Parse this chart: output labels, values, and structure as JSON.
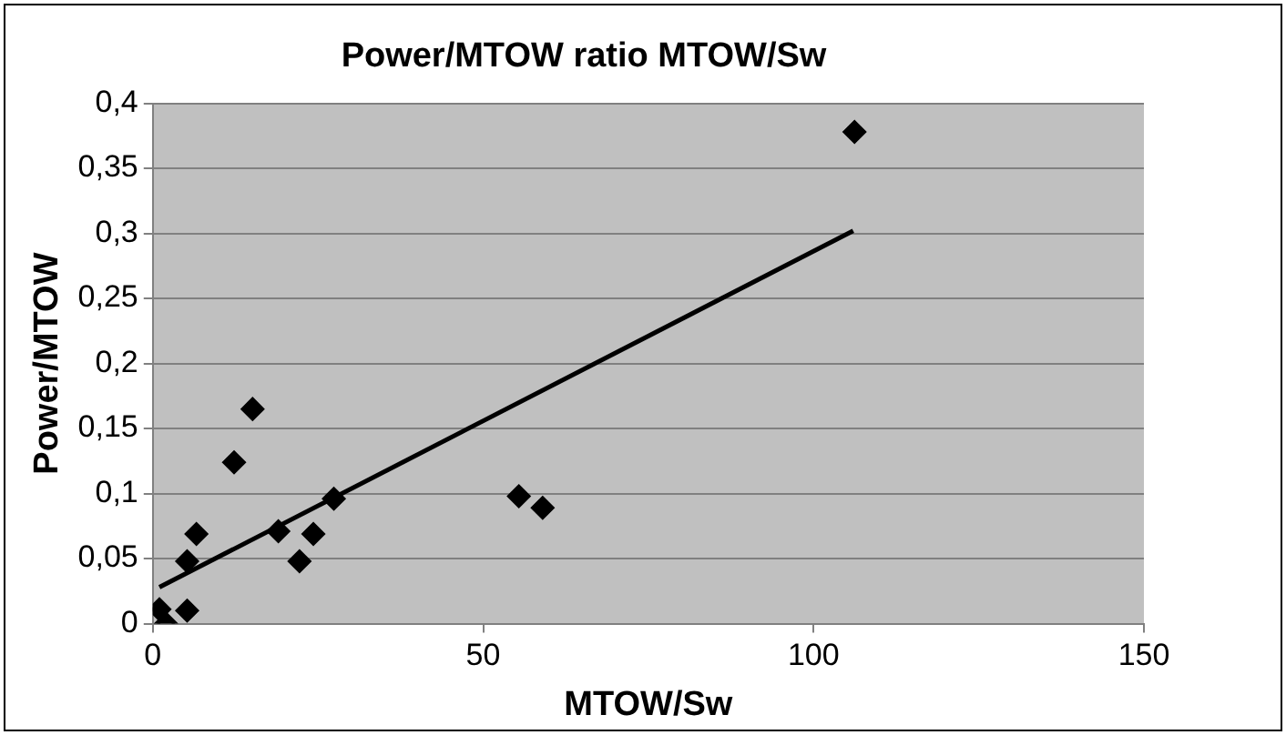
{
  "chart_data": {
    "type": "scatter",
    "title": "Power/MTOW ratio MTOW/Sw",
    "xlabel": "MTOW/Sw",
    "ylabel": "Power/MTOW",
    "series": [
      {
        "color": "#000000",
        "marker": "diamond",
        "x": [
          1.0,
          2.0,
          5.2,
          5.2,
          6.6,
          12.3,
          15.1,
          19.0,
          22.2,
          24.3,
          27.4,
          55.4,
          59.0,
          106.2
        ],
        "values": [
          0.011,
          0.0,
          0.01,
          0.048,
          0.069,
          0.124,
          0.165,
          0.071,
          0.048,
          0.069,
          0.096,
          0.098,
          0.089,
          0.378
        ]
      },
      {
        "type": "line",
        "color": "#000000",
        "marker": "none",
        "x": [
          1,
          106
        ],
        "values": [
          0.028,
          0.302
        ]
      }
    ],
    "xlim": [
      0,
      150
    ],
    "xticks": [
      0,
      50,
      100,
      150
    ],
    "ylim": [
      0,
      0.4
    ],
    "yticks": [
      {
        "value": 0,
        "label": "0"
      },
      {
        "value": 0.05,
        "label": "0,05"
      },
      {
        "value": 0.1,
        "label": "0,1"
      },
      {
        "value": 0.15,
        "label": "0,15"
      },
      {
        "value": 0.2,
        "label": "0,2"
      },
      {
        "value": 0.25,
        "label": "0,25"
      },
      {
        "value": 0.3,
        "label": "0,3"
      },
      {
        "value": 0.35,
        "label": "0,35"
      },
      {
        "value": 0.4,
        "label": "0,4"
      }
    ],
    "grid": "y",
    "legend": false
  }
}
